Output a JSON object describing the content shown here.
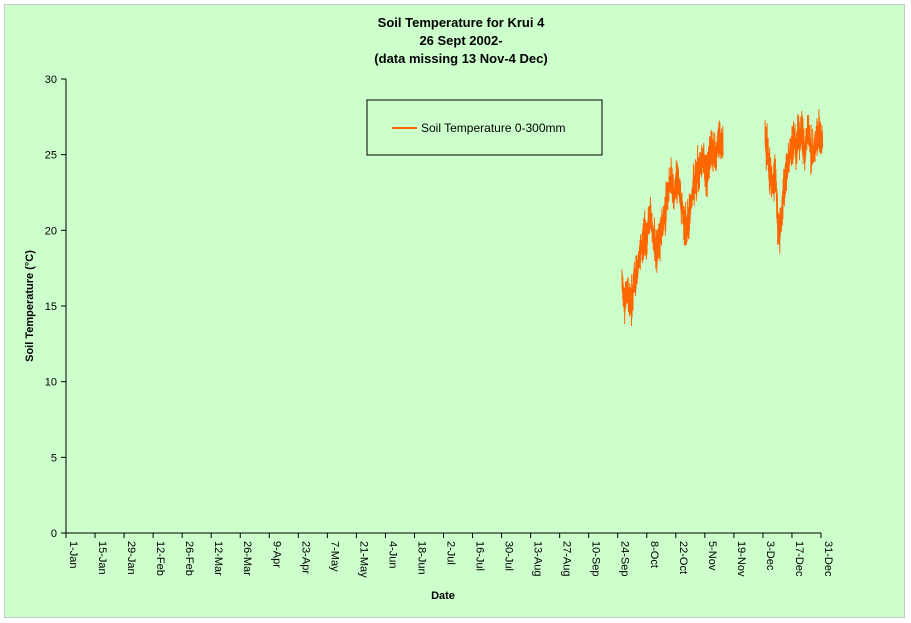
{
  "chart_data": {
    "type": "line",
    "title_lines": [
      "Soil Temperature for Krui 4",
      "26 Sept 2002-",
      "(data missing 13 Nov-4 Dec)"
    ],
    "xlabel": "Date",
    "ylabel": "Soil Temperature (°C)",
    "ylim": [
      0,
      30
    ],
    "yticks": [
      0,
      5,
      10,
      15,
      20,
      25,
      30
    ],
    "xlim_days": [
      0,
      364
    ],
    "x_tick_labels": [
      "1-Jan",
      "15-Jan",
      "29-Jan",
      "12-Feb",
      "26-Feb",
      "12-Mar",
      "26-Mar",
      "9-Apr",
      "23-Apr",
      "7-May",
      "21-May",
      "4-Jun",
      "18-Jun",
      "2-Jul",
      "16-Jul",
      "30-Jul",
      "13-Aug",
      "27-Aug",
      "10-Sep",
      "24-Sep",
      "8-Oct",
      "22-Oct",
      "5-Nov",
      "19-Nov",
      "3-Dec",
      "17-Dec",
      "31-Dec"
    ],
    "grid": false,
    "legend_position": "top-center",
    "line_color": "#ff6600",
    "series": [
      {
        "name": "Soil Temperature  0-300mm",
        "segments": [
          {
            "x": [
              "26-Sep",
              "27-Sep",
              "28-Sep",
              "29-Sep",
              "30-Sep",
              "1-Oct",
              "2-Oct",
              "3-Oct",
              "4-Oct",
              "5-Oct",
              "6-Oct",
              "7-Oct",
              "8-Oct",
              "9-Oct",
              "10-Oct",
              "11-Oct",
              "12-Oct",
              "13-Oct",
              "14-Oct",
              "15-Oct",
              "16-Oct",
              "17-Oct",
              "18-Oct",
              "19-Oct",
              "20-Oct",
              "21-Oct",
              "22-Oct",
              "23-Oct",
              "24-Oct",
              "25-Oct",
              "26-Oct",
              "27-Oct",
              "28-Oct",
              "29-Oct",
              "30-Oct",
              "31-Oct",
              "1-Nov",
              "2-Nov",
              "3-Nov",
              "4-Nov",
              "5-Nov",
              "6-Nov",
              "7-Nov",
              "8-Nov",
              "9-Nov",
              "10-Nov",
              "11-Nov",
              "12-Nov",
              "13-Nov"
            ],
            "y": [
              16.5,
              15.5,
              15.8,
              16.0,
              15.2,
              15.5,
              16.8,
              17.0,
              17.8,
              18.5,
              19.2,
              20.0,
              19.5,
              20.5,
              21.0,
              19.5,
              19.0,
              18.5,
              19.2,
              20.0,
              20.5,
              21.5,
              22.5,
              23.0,
              23.5,
              22.0,
              22.8,
              23.5,
              22.5,
              21.5,
              20.5,
              20.0,
              20.5,
              21.5,
              22.5,
              23.0,
              23.5,
              24.0,
              24.5,
              24.8,
              24.0,
              23.5,
              24.5,
              25.5,
              25.0,
              24.8,
              25.5,
              26.0,
              25.5
            ]
          },
          {
            "x": [
              "4-Dec",
              "5-Dec",
              "6-Dec",
              "7-Dec",
              "8-Dec",
              "9-Dec",
              "10-Dec",
              "11-Dec",
              "12-Dec",
              "13-Dec",
              "14-Dec",
              "15-Dec",
              "16-Dec",
              "17-Dec",
              "18-Dec",
              "19-Dec",
              "20-Dec",
              "21-Dec",
              "22-Dec",
              "23-Dec",
              "24-Dec",
              "25-Dec",
              "26-Dec",
              "27-Dec",
              "28-Dec",
              "29-Dec",
              "30-Dec",
              "31-Dec"
            ],
            "y": [
              26.0,
              25.5,
              24.0,
              23.5,
              23.0,
              24.0,
              21.0,
              19.5,
              21.0,
              22.5,
              24.0,
              24.5,
              25.0,
              25.5,
              26.0,
              25.5,
              26.5,
              26.0,
              26.5,
              25.0,
              26.0,
              26.5,
              25.5,
              25.0,
              25.5,
              26.0,
              26.5,
              26.0
            ]
          }
        ]
      }
    ]
  }
}
